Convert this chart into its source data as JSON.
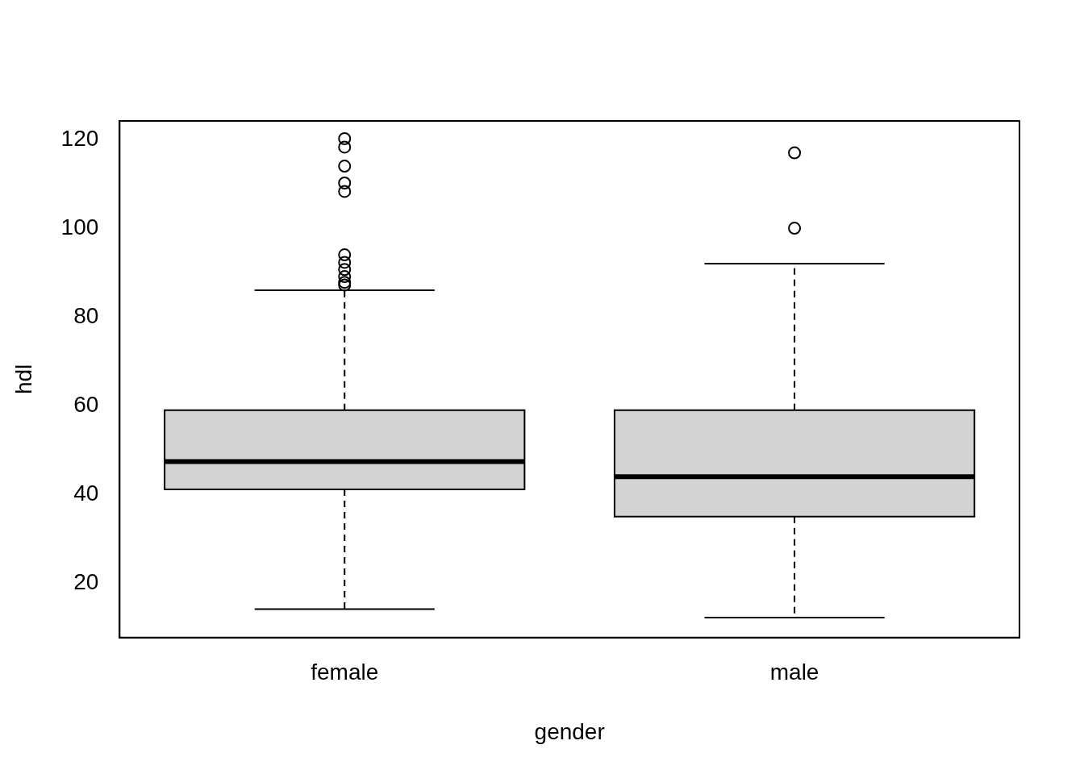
{
  "chart_data": {
    "type": "box",
    "xlabel": "gender",
    "ylabel": "hdl",
    "categories": [
      "female",
      "male"
    ],
    "color": "#d3d3d3",
    "boxes": [
      {
        "low": 14.1,
        "q1": 41.1,
        "median": 47.4,
        "q3": 59,
        "high": 86,
        "outliers": [
          120.2,
          118.3,
          114,
          110.2,
          108.3,
          94,
          92.3,
          90.7,
          89.1,
          87.8,
          87.2
        ]
      },
      {
        "low": 12.2,
        "q1": 35,
        "median": 44,
        "q3": 59,
        "high": 92,
        "outliers": [
          117,
          100
        ]
      }
    ],
    "ylim": [
      7.7,
      124.2
    ],
    "yticks": [
      20,
      40,
      60,
      80,
      100,
      120
    ],
    "grid": false,
    "legend": false,
    "marker": "circle"
  }
}
